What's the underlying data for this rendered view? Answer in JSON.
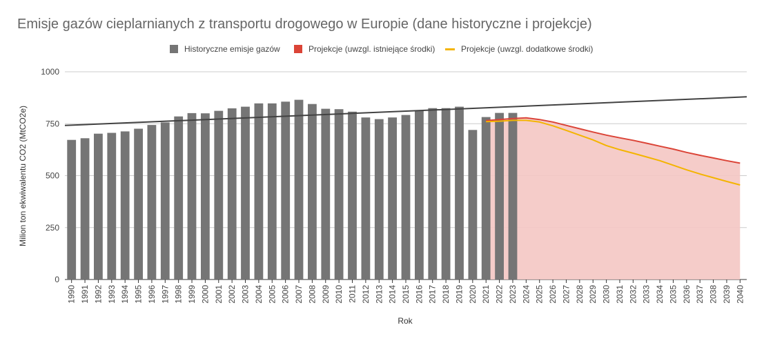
{
  "chart_data": {
    "type": "bar",
    "title": "Emisje gazów cieplarnianych z transportu drogowego w Europie (dane historyczne i projekcje)",
    "xlabel": "Rok",
    "ylabel": "Milion ton ekwiwalentu CO2 (MtCO2e)",
    "ylim": [
      0,
      1000
    ],
    "yticks": [
      "0",
      "250",
      "500",
      "750",
      "1000"
    ],
    "grid": true,
    "legend_position": "top",
    "categories": [
      "1990",
      "1991",
      "1992",
      "1993",
      "1994",
      "1995",
      "1996",
      "1997",
      "1998",
      "1999",
      "2000",
      "2001",
      "2002",
      "2003",
      "2004",
      "2005",
      "2006",
      "2007",
      "2008",
      "2009",
      "2010",
      "2011",
      "2012",
      "2013",
      "2014",
      "2015",
      "2016",
      "2017",
      "2018",
      "2019",
      "2020",
      "2021",
      "2022",
      "2023",
      "2024",
      "2025",
      "2026",
      "2027",
      "2028",
      "2029",
      "2030",
      "2031",
      "2032",
      "2033",
      "2034",
      "2035",
      "2036",
      "2037",
      "2038",
      "2039",
      "2040"
    ],
    "series": [
      {
        "name": "Historyczne emisje gazów",
        "kind": "bar",
        "color": "#757575",
        "x": [
          "1990",
          "1991",
          "1992",
          "1993",
          "1994",
          "1995",
          "1996",
          "1997",
          "1998",
          "1999",
          "2000",
          "2001",
          "2002",
          "2003",
          "2004",
          "2005",
          "2006",
          "2007",
          "2008",
          "2009",
          "2010",
          "2011",
          "2012",
          "2013",
          "2014",
          "2015",
          "2016",
          "2017",
          "2018",
          "2019",
          "2020",
          "2021",
          "2022",
          "2023"
        ],
        "values": [
          672,
          680,
          702,
          706,
          713,
          726,
          744,
          756,
          785,
          801,
          800,
          812,
          824,
          832,
          848,
          848,
          856,
          865,
          845,
          822,
          820,
          808,
          780,
          772,
          780,
          792,
          815,
          825,
          825,
          832,
          720,
          782,
          802,
          802
        ]
      },
      {
        "name": "Projekcje (uwzgl. istniejące środki)",
        "kind": "area",
        "color": "#db4437",
        "fill": "#f4c7c3",
        "x": [
          "2021",
          "2022",
          "2023",
          "2024",
          "2025",
          "2026",
          "2027",
          "2028",
          "2029",
          "2030",
          "2031",
          "2032",
          "2033",
          "2034",
          "2035",
          "2036",
          "2037",
          "2038",
          "2039",
          "2040"
        ],
        "values": [
          765,
          770,
          775,
          778,
          770,
          758,
          742,
          726,
          710,
          695,
          682,
          670,
          656,
          642,
          628,
          612,
          598,
          585,
          572,
          560
        ]
      },
      {
        "name": "Projekcje (uwzgl. dodatkowe środki)",
        "kind": "line",
        "color": "#f4b400",
        "x": [
          "2021",
          "2022",
          "2023",
          "2024",
          "2025",
          "2026",
          "2027",
          "2028",
          "2029",
          "2030",
          "2031",
          "2032",
          "2033",
          "2034",
          "2035",
          "2036",
          "2037",
          "2038",
          "2039",
          "2040"
        ],
        "values": [
          760,
          762,
          766,
          766,
          758,
          740,
          718,
          695,
          672,
          645,
          625,
          608,
          590,
          572,
          550,
          528,
          508,
          490,
          472,
          455
        ]
      }
    ],
    "trendline": {
      "color": "#424242",
      "x": [
        "1990",
        "2040"
      ],
      "values": [
        743,
        878
      ]
    }
  }
}
